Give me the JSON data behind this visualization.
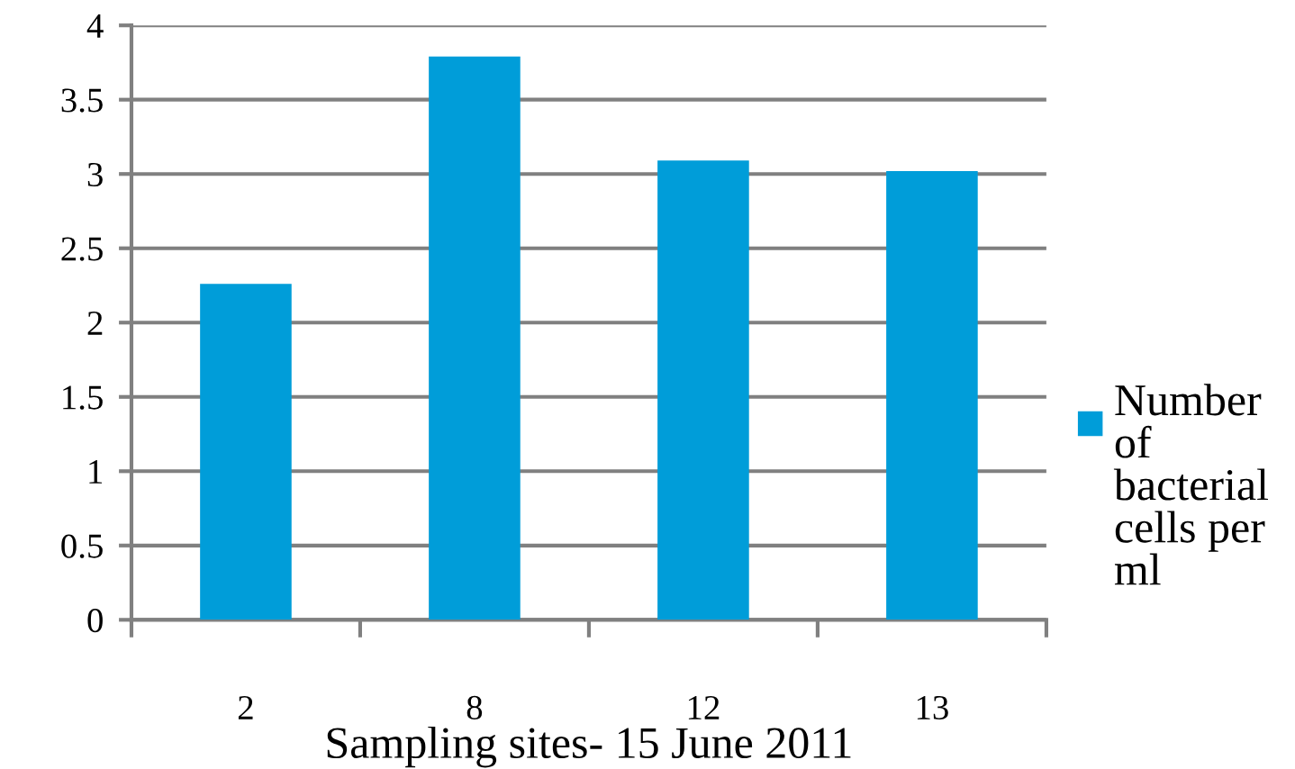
{
  "chart_data": {
    "type": "bar",
    "categories": [
      "2",
      "8",
      "12",
      "13"
    ],
    "series": [
      {
        "name": "Number of bacterial cells per ml",
        "color": "#009dd9",
        "values": [
          2.26,
          3.79,
          3.09,
          3.02
        ]
      }
    ],
    "xlabel": "Sampling sites- 15 June 2011",
    "ylim": [
      0,
      4
    ],
    "yticks": [
      0,
      0.5,
      1,
      1.5,
      2,
      2.5,
      3,
      3.5,
      4
    ],
    "grid": "y",
    "legend": "right"
  }
}
